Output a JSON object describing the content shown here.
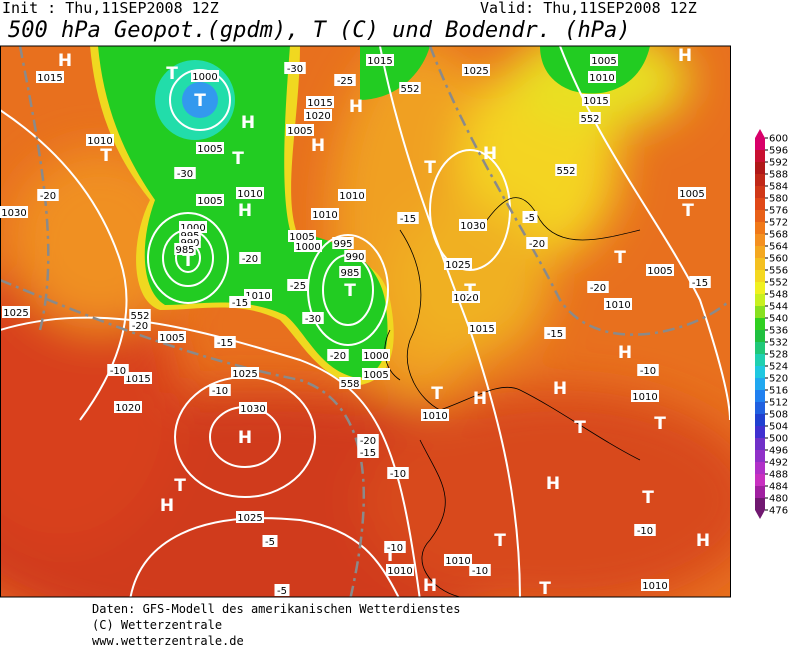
{
  "header": {
    "init": "Init : Thu,11SEP2008 12Z",
    "valid": "Valid: Thu,11SEP2008 12Z",
    "title": "500 hPa Geopot.(gpdm), T (C) und Bodendr. (hPa)"
  },
  "footer": [
    "Daten: GFS-Modell des amerikanischen Wetterdienstes",
    "(C) Wetterzentrale",
    "www.wetterzentrale.de"
  ],
  "map": {
    "labels": [
      "1015",
      "1000",
      "1005",
      "1010",
      "1010",
      "1005",
      "1030",
      "1000",
      "995",
      "990",
      "985",
      "1025",
      "1010",
      "1005",
      "1015",
      "1020",
      "1025",
      "1030",
      "1025",
      "1015",
      "1020",
      "1005",
      "1000",
      "1010",
      "995",
      "990",
      "985",
      "1000",
      "1005",
      "1025",
      "1025",
      "1030",
      "1020",
      "1015",
      "1015",
      "1005",
      "1005",
      "1010",
      "1015",
      "1010",
      "1010",
      "1010",
      "1010",
      "1010",
      "1010",
      "1005",
      "1005",
      "1010",
      "T",
      "T",
      "H",
      "T",
      "H",
      "T",
      "T",
      "H",
      "T",
      "H",
      "T",
      "H",
      "T",
      "H",
      "H",
      "T",
      "H",
      "T",
      "T",
      "H",
      "T",
      "T",
      "T",
      "H",
      "T",
      "H",
      "T",
      "H",
      "H",
      "T",
      "H",
      "H",
      "T",
      "-30",
      "-25",
      "-30",
      "-20",
      "-20",
      "-25",
      "-30",
      "-20",
      "-15",
      "-20",
      "-15",
      "-10",
      "-10",
      "-15",
      "-20",
      "-15",
      "-10",
      "-10",
      "-20",
      "-15",
      "-5",
      "-10",
      "-15",
      "-20",
      "-5",
      "-10",
      "-10",
      "-5",
      "552",
      "552",
      "552",
      "558",
      "552"
    ]
  },
  "colorbar": {
    "ticks": [
      600,
      596,
      592,
      588,
      584,
      580,
      576,
      572,
      568,
      564,
      560,
      556,
      552,
      548,
      544,
      540,
      536,
      532,
      528,
      524,
      520,
      516,
      512,
      508,
      504,
      500,
      496,
      492,
      488,
      484,
      480,
      476
    ],
    "colors": [
      "#d8006a",
      "#c81030",
      "#b01818",
      "#c02818",
      "#d03818",
      "#e04818",
      "#e86018",
      "#f07818",
      "#f49020",
      "#f4a820",
      "#f4c020",
      "#f4d820",
      "#f0f020",
      "#c8f020",
      "#88e020",
      "#30d020",
      "#20c040",
      "#20c878",
      "#20d0b0",
      "#20c8e0",
      "#20a8f0",
      "#2080f0",
      "#2060e0",
      "#2040d0",
      "#4030d0",
      "#7030c8",
      "#9030c8",
      "#b030c8",
      "#c830c0",
      "#a020a0",
      "#701870"
    ]
  }
}
